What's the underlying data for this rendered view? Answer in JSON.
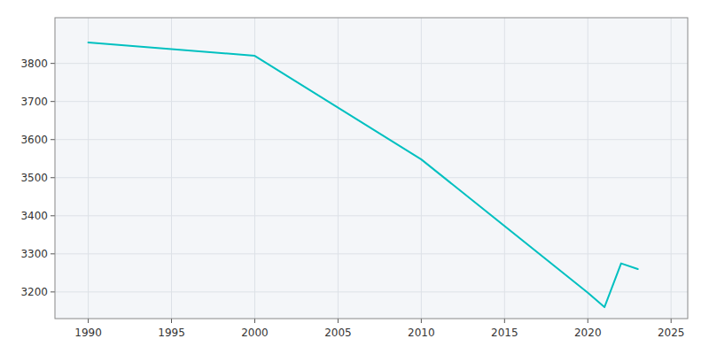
{
  "chart_data": {
    "type": "line",
    "x": [
      1990,
      2000,
      2010,
      2020,
      2021,
      2022,
      2023
    ],
    "values": [
      3855,
      3820,
      3548,
      3198,
      3160,
      3275,
      3260
    ],
    "color": "#00c0c0",
    "xlim": [
      1988,
      2026
    ],
    "xticks": [
      1990,
      1995,
      2000,
      2005,
      2010,
      2015,
      2020,
      2025
    ],
    "ylim": [
      3130,
      3920
    ],
    "yticks": [
      3200,
      3300,
      3400,
      3500,
      3600,
      3700,
      3800
    ],
    "grid": true
  }
}
